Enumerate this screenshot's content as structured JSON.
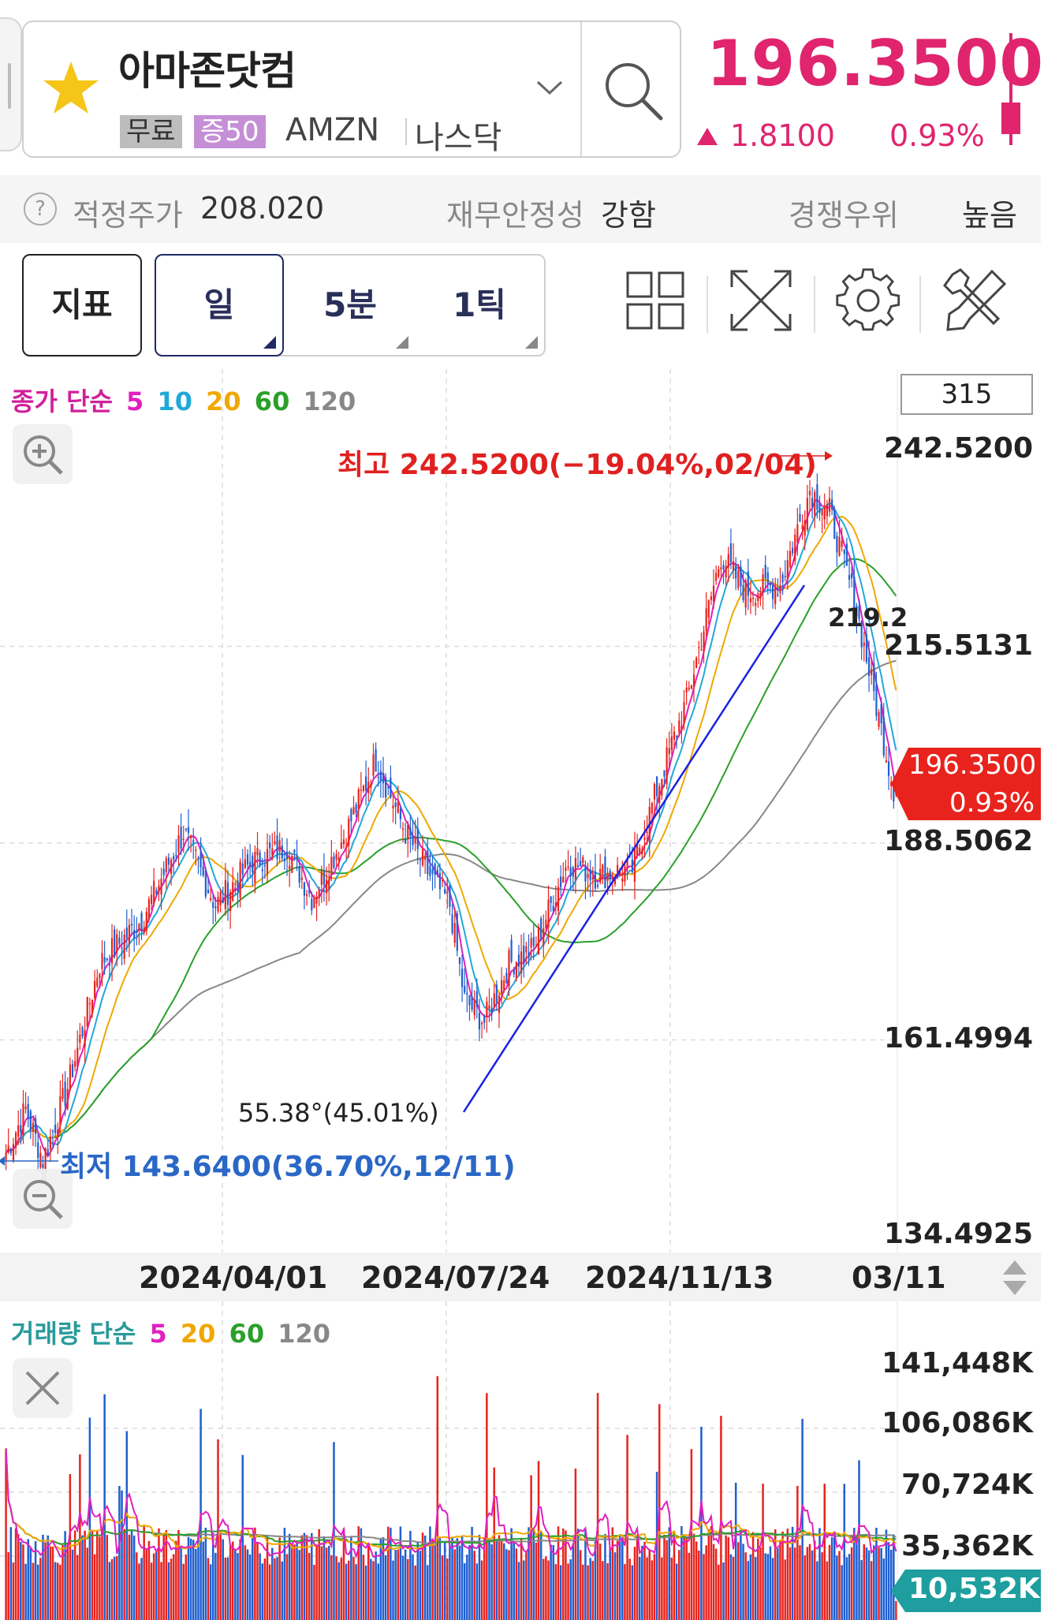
{
  "header": {
    "stock_name": "아마존닷컴",
    "badge_free": "무료",
    "badge_margin": "증50",
    "ticker": "AMZN",
    "exchange": "나스닥",
    "price": "196.3500",
    "change": "1.8100",
    "change_pct": "0.93%",
    "price_color": "#e0246e"
  },
  "infobar": {
    "fair_price_label": "적정주가",
    "fair_price_value": "208.020",
    "stability_label": "재무안정성",
    "stability_value": "강함",
    "competitive_label": "경쟁우위",
    "competitive_value": "높음"
  },
  "toolbar": {
    "indicator_label": "지표",
    "periods": [
      {
        "label": "일",
        "active": true
      },
      {
        "label": "5분",
        "active": false
      },
      {
        "label": "1틱",
        "active": false
      }
    ]
  },
  "price_legend": {
    "title": "종가 단순",
    "ma": [
      {
        "label": "5",
        "color": "#e020c0"
      },
      {
        "label": "10",
        "color": "#22a8d8"
      },
      {
        "label": "20",
        "color": "#f0a800"
      },
      {
        "label": "60",
        "color": "#2aa02a"
      },
      {
        "label": "120",
        "color": "#888888"
      }
    ]
  },
  "count_box": "315",
  "price_axis": {
    "labels": [
      "242.5200",
      "215.5131",
      "188.5062",
      "161.4994",
      "134.4925"
    ]
  },
  "annotations": {
    "high": "최고 242.5200(−19.04%,02/04)",
    "low": "최저 143.6400(36.70%,12/11)",
    "trend_angle": "55.38°(45.01%)",
    "ma_value": "219.2",
    "current_price": "196.3500",
    "current_pct": "0.93%"
  },
  "date_axis": {
    "labels": [
      "2024/04/01",
      "2024/07/24",
      "2024/11/13",
      "03/11"
    ]
  },
  "volume_legend": {
    "title": "거래량 단순",
    "ma": [
      {
        "label": "5",
        "color": "#e020c0"
      },
      {
        "label": "20",
        "color": "#f0a800"
      },
      {
        "label": "60",
        "color": "#2aa02a"
      },
      {
        "label": "120",
        "color": "#888888"
      }
    ]
  },
  "volume_axis": {
    "labels": [
      "141,448K",
      "106,086K",
      "70,724K",
      "35,362K"
    ],
    "current": "10,532K"
  },
  "chart_data": {
    "type": "candlestick",
    "price_range": [
      134.4925,
      242.52
    ],
    "high": {
      "value": 242.52,
      "date": "02/04"
    },
    "low": {
      "value": 143.64,
      "date": "12/11"
    },
    "last_close": 196.35,
    "close_anchors": [
      {
        "i": 0,
        "v": 146
      },
      {
        "i": 8,
        "v": 152
      },
      {
        "i": 15,
        "v": 145
      },
      {
        "i": 25,
        "v": 155
      },
      {
        "i": 38,
        "v": 172
      },
      {
        "i": 55,
        "v": 178
      },
      {
        "i": 72,
        "v": 190
      },
      {
        "i": 85,
        "v": 180
      },
      {
        "i": 100,
        "v": 186
      },
      {
        "i": 114,
        "v": 188
      },
      {
        "i": 124,
        "v": 181
      },
      {
        "i": 138,
        "v": 190
      },
      {
        "i": 150,
        "v": 200
      },
      {
        "i": 162,
        "v": 190
      },
      {
        "i": 172,
        "v": 184
      },
      {
        "i": 180,
        "v": 180
      },
      {
        "i": 186,
        "v": 167
      },
      {
        "i": 194,
        "v": 164
      },
      {
        "i": 204,
        "v": 172
      },
      {
        "i": 214,
        "v": 174
      },
      {
        "i": 228,
        "v": 186
      },
      {
        "i": 240,
        "v": 184
      },
      {
        "i": 254,
        "v": 185
      },
      {
        "i": 266,
        "v": 198
      },
      {
        "i": 276,
        "v": 208
      },
      {
        "i": 290,
        "v": 228
      },
      {
        "i": 300,
        "v": 223
      },
      {
        "i": 314,
        "v": 224
      },
      {
        "i": 326,
        "v": 237
      },
      {
        "i": 334,
        "v": 234
      },
      {
        "i": 344,
        "v": 222
      },
      {
        "i": 352,
        "v": 209
      },
      {
        "i": 360,
        "v": 196
      }
    ],
    "volume_range": [
      0,
      141448
    ],
    "volume_last": 10532
  }
}
